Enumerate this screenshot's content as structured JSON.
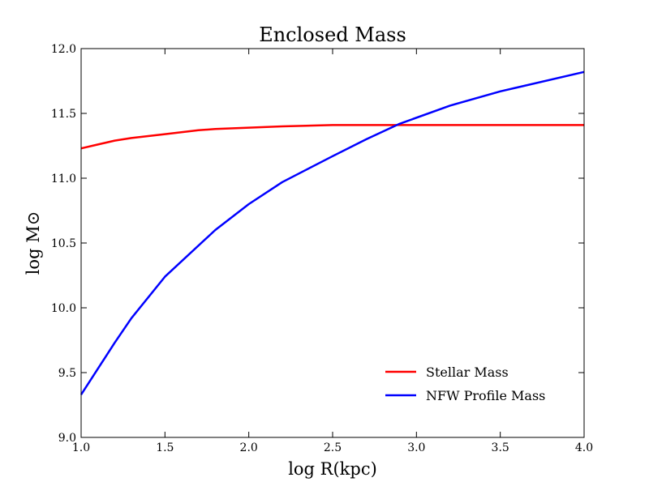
{
  "chart_data": {
    "type": "line",
    "title": "Enclosed Mass",
    "xlabel": "log R(kpc)",
    "ylabel": "log M⊙",
    "xlim": [
      1.0,
      4.0
    ],
    "ylim": [
      9.0,
      12.0
    ],
    "x_ticks": [
      1.0,
      1.5,
      2.0,
      2.5,
      3.0,
      3.5,
      4.0
    ],
    "x_tick_labels": [
      "1.0",
      "1.5",
      "2.0",
      "2.5",
      "3.0",
      "3.5",
      "4.0"
    ],
    "y_ticks": [
      9.0,
      9.5,
      10.0,
      10.5,
      11.0,
      11.5,
      12.0
    ],
    "y_tick_labels": [
      "9.0",
      "9.5",
      "10.0",
      "10.5",
      "11.0",
      "11.5",
      "12.0"
    ],
    "grid": false,
    "legend_position": "lower-right",
    "series": [
      {
        "name": "Stellar Mass",
        "color": "#ff0000",
        "x": [
          1.0,
          1.1,
          1.2,
          1.3,
          1.5,
          1.7,
          1.8,
          2.0,
          2.2,
          2.5,
          3.0,
          3.5,
          4.0
        ],
        "y": [
          11.23,
          11.26,
          11.29,
          11.31,
          11.34,
          11.37,
          11.38,
          11.39,
          11.4,
          11.41,
          11.41,
          11.41,
          11.41
        ]
      },
      {
        "name": "NFW Profile Mass",
        "color": "#0000ff",
        "x": [
          1.0,
          1.1,
          1.2,
          1.3,
          1.5,
          1.8,
          2.0,
          2.2,
          2.5,
          2.7,
          2.9,
          3.2,
          3.5,
          4.0
        ],
        "y": [
          9.33,
          9.53,
          9.73,
          9.92,
          10.24,
          10.6,
          10.8,
          10.97,
          11.17,
          11.3,
          11.42,
          11.56,
          11.67,
          11.82
        ]
      }
    ]
  }
}
